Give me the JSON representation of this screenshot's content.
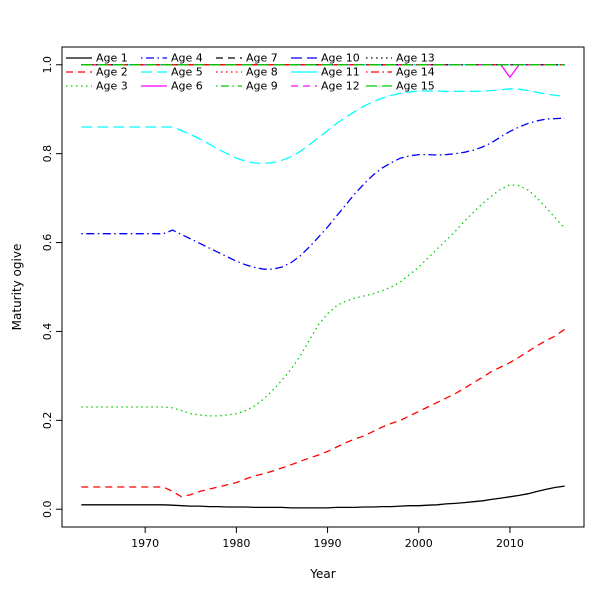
{
  "chart_data": {
    "type": "line",
    "title": "",
    "xlabel": "Year",
    "ylabel": "Maturity ogive",
    "xlim": [
      1963,
      2016
    ],
    "ylim": [
      0.0,
      1.0
    ],
    "x_ticks": [
      1970,
      1980,
      1990,
      2000,
      2010
    ],
    "y_ticks": [
      0.0,
      0.2,
      0.4,
      0.6,
      0.8,
      1.0
    ],
    "grid": false,
    "legend_position": "top-left",
    "legend_columns": 5,
    "legend_rows": 3,
    "colors": {
      "black": "#000000",
      "red": "#FF0000",
      "green": "#00CD00",
      "blue": "#0000FF",
      "cyan": "#00FFFF",
      "magenta": "#FF00FF"
    },
    "years": [
      1963,
      1964,
      1965,
      1966,
      1967,
      1968,
      1969,
      1970,
      1971,
      1972,
      1973,
      1974,
      1975,
      1976,
      1977,
      1978,
      1979,
      1980,
      1981,
      1982,
      1983,
      1984,
      1985,
      1986,
      1987,
      1988,
      1989,
      1990,
      1991,
      1992,
      1993,
      1994,
      1995,
      1996,
      1997,
      1998,
      1999,
      2000,
      2001,
      2002,
      2003,
      2004,
      2005,
      2006,
      2007,
      2008,
      2009,
      2010,
      2011,
      2012,
      2013,
      2014,
      2015,
      2016
    ],
    "series": [
      {
        "name": "Age 1",
        "color": "#000000",
        "style": "solid",
        "y": [
          0.01,
          0.01,
          0.01,
          0.01,
          0.01,
          0.01,
          0.01,
          0.01,
          0.01,
          0.01,
          0.009,
          0.008,
          0.007,
          0.007,
          0.006,
          0.006,
          0.005,
          0.005,
          0.005,
          0.004,
          0.004,
          0.004,
          0.004,
          0.003,
          0.003,
          0.003,
          0.003,
          0.003,
          0.004,
          0.004,
          0.004,
          0.005,
          0.005,
          0.006,
          0.006,
          0.007,
          0.008,
          0.008,
          0.009,
          0.01,
          0.012,
          0.013,
          0.015,
          0.017,
          0.019,
          0.022,
          0.025,
          0.028,
          0.031,
          0.035,
          0.04,
          0.045,
          0.049,
          0.052
        ]
      },
      {
        "name": "Age 2",
        "color": "#FF0000",
        "style": "dashed",
        "y": [
          0.05,
          0.05,
          0.05,
          0.05,
          0.05,
          0.05,
          0.05,
          0.05,
          0.05,
          0.05,
          0.04,
          0.028,
          0.033,
          0.04,
          0.045,
          0.05,
          0.055,
          0.06,
          0.068,
          0.075,
          0.08,
          0.086,
          0.093,
          0.1,
          0.108,
          0.115,
          0.122,
          0.13,
          0.14,
          0.15,
          0.158,
          0.165,
          0.175,
          0.185,
          0.193,
          0.2,
          0.21,
          0.22,
          0.23,
          0.24,
          0.25,
          0.26,
          0.272,
          0.285,
          0.297,
          0.31,
          0.32,
          0.33,
          0.342,
          0.355,
          0.368,
          0.38,
          0.39,
          0.405
        ]
      },
      {
        "name": "Age 3",
        "color": "#00CD00",
        "style": "dotted",
        "y": [
          0.23,
          0.23,
          0.23,
          0.23,
          0.23,
          0.23,
          0.23,
          0.23,
          0.23,
          0.23,
          0.228,
          0.222,
          0.215,
          0.212,
          0.21,
          0.21,
          0.212,
          0.215,
          0.222,
          0.232,
          0.248,
          0.268,
          0.29,
          0.315,
          0.345,
          0.38,
          0.415,
          0.44,
          0.458,
          0.468,
          0.475,
          0.48,
          0.485,
          0.492,
          0.5,
          0.512,
          0.528,
          0.545,
          0.565,
          0.585,
          0.605,
          0.625,
          0.648,
          0.668,
          0.688,
          0.705,
          0.72,
          0.73,
          0.728,
          0.718,
          0.7,
          0.678,
          0.655,
          0.632
        ]
      },
      {
        "name": "Age 4",
        "color": "#0000FF",
        "style": "dashdot",
        "y": [
          0.62,
          0.62,
          0.62,
          0.62,
          0.62,
          0.62,
          0.62,
          0.62,
          0.62,
          0.62,
          0.628,
          0.618,
          0.608,
          0.598,
          0.588,
          0.578,
          0.568,
          0.558,
          0.55,
          0.544,
          0.54,
          0.54,
          0.545,
          0.555,
          0.57,
          0.59,
          0.612,
          0.635,
          0.66,
          0.685,
          0.71,
          0.732,
          0.752,
          0.768,
          0.78,
          0.79,
          0.795,
          0.798,
          0.798,
          0.797,
          0.798,
          0.8,
          0.803,
          0.808,
          0.815,
          0.825,
          0.838,
          0.85,
          0.86,
          0.868,
          0.874,
          0.878,
          0.879,
          0.88
        ]
      },
      {
        "name": "Age 5",
        "color": "#00FFFF",
        "style": "longdash",
        "y": [
          0.86,
          0.86,
          0.86,
          0.86,
          0.86,
          0.86,
          0.86,
          0.86,
          0.86,
          0.86,
          0.86,
          0.852,
          0.843,
          0.833,
          0.822,
          0.81,
          0.8,
          0.79,
          0.783,
          0.779,
          0.778,
          0.78,
          0.785,
          0.793,
          0.805,
          0.82,
          0.836,
          0.852,
          0.868,
          0.882,
          0.895,
          0.907,
          0.917,
          0.925,
          0.931,
          0.936,
          0.939,
          0.941,
          0.941,
          0.941,
          0.94,
          0.94,
          0.94,
          0.94,
          0.941,
          0.942,
          0.944,
          0.946,
          0.945,
          0.942,
          0.938,
          0.934,
          0.931,
          0.929
        ]
      },
      {
        "name": "Age 6",
        "color": "#FF00FF",
        "style": "solid",
        "x": [
          1963,
          2009,
          2010,
          2011,
          2016
        ],
        "y": [
          1.0,
          1.0,
          0.972,
          1.0,
          1.0
        ]
      },
      {
        "name": "Age 7",
        "color": "#000000",
        "style": "dashed",
        "x": [
          1963,
          2016
        ],
        "y": [
          1.0,
          1.0
        ]
      },
      {
        "name": "Age 8",
        "color": "#FF0000",
        "style": "dotted",
        "x": [
          1963,
          2016
        ],
        "y": [
          1.0,
          1.0
        ]
      },
      {
        "name": "Age 9",
        "color": "#00CD00",
        "style": "dashdot",
        "x": [
          1963,
          2016
        ],
        "y": [
          1.0,
          1.0
        ]
      },
      {
        "name": "Age 10",
        "color": "#0000FF",
        "style": "longdash",
        "x": [
          1963,
          2016
        ],
        "y": [
          1.0,
          1.0
        ]
      },
      {
        "name": "Age 11",
        "color": "#00FFFF",
        "style": "solid",
        "x": [
          1963,
          2016
        ],
        "y": [
          1.0,
          1.0
        ]
      },
      {
        "name": "Age 12",
        "color": "#FF00FF",
        "style": "dashed",
        "x": [
          1963,
          2016
        ],
        "y": [
          1.0,
          1.0
        ]
      },
      {
        "name": "Age 13",
        "color": "#000000",
        "style": "dotted",
        "x": [
          1963,
          2016
        ],
        "y": [
          1.0,
          1.0
        ]
      },
      {
        "name": "Age 14",
        "color": "#FF0000",
        "style": "dashdot",
        "x": [
          1963,
          2016
        ],
        "y": [
          1.0,
          1.0
        ]
      },
      {
        "name": "Age 15",
        "color": "#00CD00",
        "style": "longdash",
        "x": [
          1963,
          2016
        ],
        "y": [
          1.0,
          1.0
        ]
      }
    ]
  }
}
